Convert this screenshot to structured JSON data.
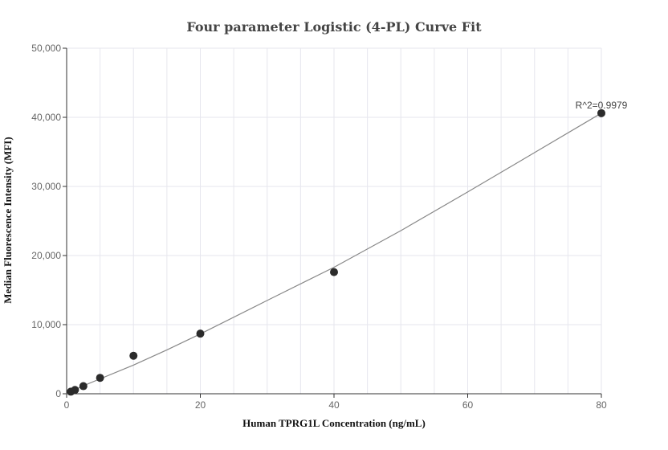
{
  "chart_data": {
    "type": "scatter",
    "title": "Four parameter Logistic (4-PL) Curve Fit",
    "xlabel": "Human TPRG1L Concentration (ng/mL)",
    "ylabel": "Median Fluorescence Intensity (MFI)",
    "xlim": [
      0,
      80
    ],
    "ylim": [
      0,
      50000
    ],
    "x_ticks": [
      0,
      20,
      40,
      60,
      80
    ],
    "y_ticks": [
      0,
      10000,
      20000,
      30000,
      40000,
      50000
    ],
    "x_tick_labels": [
      "0",
      "20",
      "40",
      "60",
      "80"
    ],
    "y_tick_labels": [
      "0",
      "10,000",
      "20,000",
      "30,000",
      "40,000",
      "50,000"
    ],
    "grid": true,
    "points": {
      "x": [
        0.625,
        1.25,
        2.5,
        5,
        10,
        20,
        40,
        80
      ],
      "y": [
        300,
        550,
        1100,
        2300,
        5500,
        8700,
        17600,
        40600
      ]
    },
    "fit_curve": {
      "x": [
        0,
        2.5,
        5,
        10,
        15,
        20,
        30,
        40,
        50,
        60,
        70,
        80
      ],
      "y": [
        0,
        1150,
        2150,
        4150,
        6350,
        8650,
        13500,
        18300,
        23600,
        29200,
        34900,
        40600
      ]
    },
    "annotation": "R^2=0.9979",
    "colors": {
      "points": "#2b2b2b",
      "fit_line": "#888888",
      "grid": "#e6e6ee",
      "axis": "#333333"
    }
  }
}
